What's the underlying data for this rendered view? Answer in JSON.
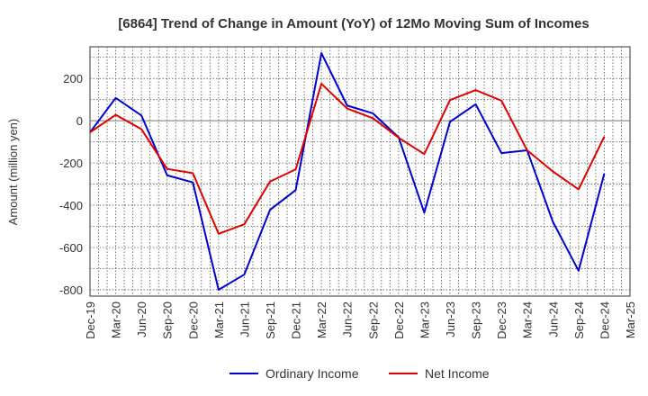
{
  "chart_data": {
    "type": "line",
    "title": "[6864]  Trend of Change in Amount (YoY) of 12Mo Moving Sum of Incomes",
    "xlabel": "",
    "ylabel": "Amount (million yen)",
    "x": [
      "Dec-19",
      "Mar-20",
      "Jun-20",
      "Sep-20",
      "Dec-20",
      "Mar-21",
      "Jun-21",
      "Sep-21",
      "Dec-21",
      "Mar-22",
      "Jun-22",
      "Sep-22",
      "Dec-22",
      "Mar-23",
      "Jun-23",
      "Sep-23",
      "Dec-23",
      "Mar-24",
      "Jun-24",
      "Sep-24",
      "Dec-24",
      "Mar-25"
    ],
    "ylim": [
      -830,
      350
    ],
    "yticks": [
      -800,
      -600,
      -400,
      -200,
      0,
      200
    ],
    "grid": true,
    "legend": "bottom-center",
    "series": [
      {
        "name": "Ordinary Income",
        "color": "#0000cc",
        "values": [
          -55,
          108,
          25,
          -258,
          -292,
          -800,
          -728,
          -422,
          -328,
          320,
          72,
          35,
          -78,
          -435,
          -5,
          78,
          -153,
          -140,
          -478,
          -710,
          -250,
          null
        ]
      },
      {
        "name": "Net Income",
        "color": "#dd0000",
        "values": [
          -55,
          28,
          -40,
          -228,
          -248,
          -535,
          -490,
          -288,
          -230,
          175,
          58,
          12,
          -80,
          -158,
          98,
          145,
          95,
          -140,
          -240,
          -325,
          -75,
          null
        ]
      }
    ]
  }
}
